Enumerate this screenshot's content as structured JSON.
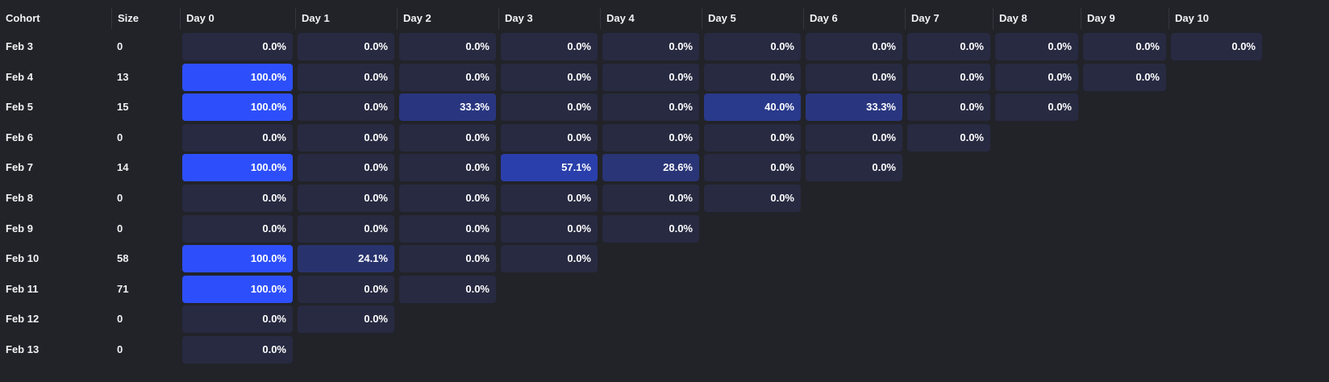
{
  "header": {
    "cohort": "Cohort",
    "size": "Size",
    "days": [
      "Day 0",
      "Day 1",
      "Day 2",
      "Day 3",
      "Day 4",
      "Day 5",
      "Day 6",
      "Day 7",
      "Day 8",
      "Day 9",
      "Day 10"
    ]
  },
  "colors": {
    "background": "#222329",
    "cell_empty": "#272a41",
    "cell_full": "#2d4ffb"
  },
  "rows": [
    {
      "cohort": "Feb 3",
      "size": "0",
      "values": [
        "0.0%",
        "0.0%",
        "0.0%",
        "0.0%",
        "0.0%",
        "0.0%",
        "0.0%",
        "0.0%",
        "0.0%",
        "0.0%",
        "0.0%"
      ]
    },
    {
      "cohort": "Feb 4",
      "size": "13",
      "values": [
        "100.0%",
        "0.0%",
        "0.0%",
        "0.0%",
        "0.0%",
        "0.0%",
        "0.0%",
        "0.0%",
        "0.0%",
        "0.0%"
      ]
    },
    {
      "cohort": "Feb 5",
      "size": "15",
      "values": [
        "100.0%",
        "0.0%",
        "33.3%",
        "0.0%",
        "0.0%",
        "40.0%",
        "33.3%",
        "0.0%",
        "0.0%"
      ]
    },
    {
      "cohort": "Feb 6",
      "size": "0",
      "values": [
        "0.0%",
        "0.0%",
        "0.0%",
        "0.0%",
        "0.0%",
        "0.0%",
        "0.0%",
        "0.0%"
      ]
    },
    {
      "cohort": "Feb 7",
      "size": "14",
      "values": [
        "100.0%",
        "0.0%",
        "0.0%",
        "57.1%",
        "28.6%",
        "0.0%",
        "0.0%"
      ]
    },
    {
      "cohort": "Feb 8",
      "size": "0",
      "values": [
        "0.0%",
        "0.0%",
        "0.0%",
        "0.0%",
        "0.0%",
        "0.0%"
      ]
    },
    {
      "cohort": "Feb 9",
      "size": "0",
      "values": [
        "0.0%",
        "0.0%",
        "0.0%",
        "0.0%",
        "0.0%"
      ]
    },
    {
      "cohort": "Feb 10",
      "size": "58",
      "values": [
        "100.0%",
        "24.1%",
        "0.0%",
        "0.0%"
      ]
    },
    {
      "cohort": "Feb 11",
      "size": "71",
      "values": [
        "100.0%",
        "0.0%",
        "0.0%"
      ]
    },
    {
      "cohort": "Feb 12",
      "size": "0",
      "values": [
        "0.0%",
        "0.0%"
      ]
    },
    {
      "cohort": "Feb 13",
      "size": "0",
      "values": [
        "0.0%"
      ]
    }
  ]
}
